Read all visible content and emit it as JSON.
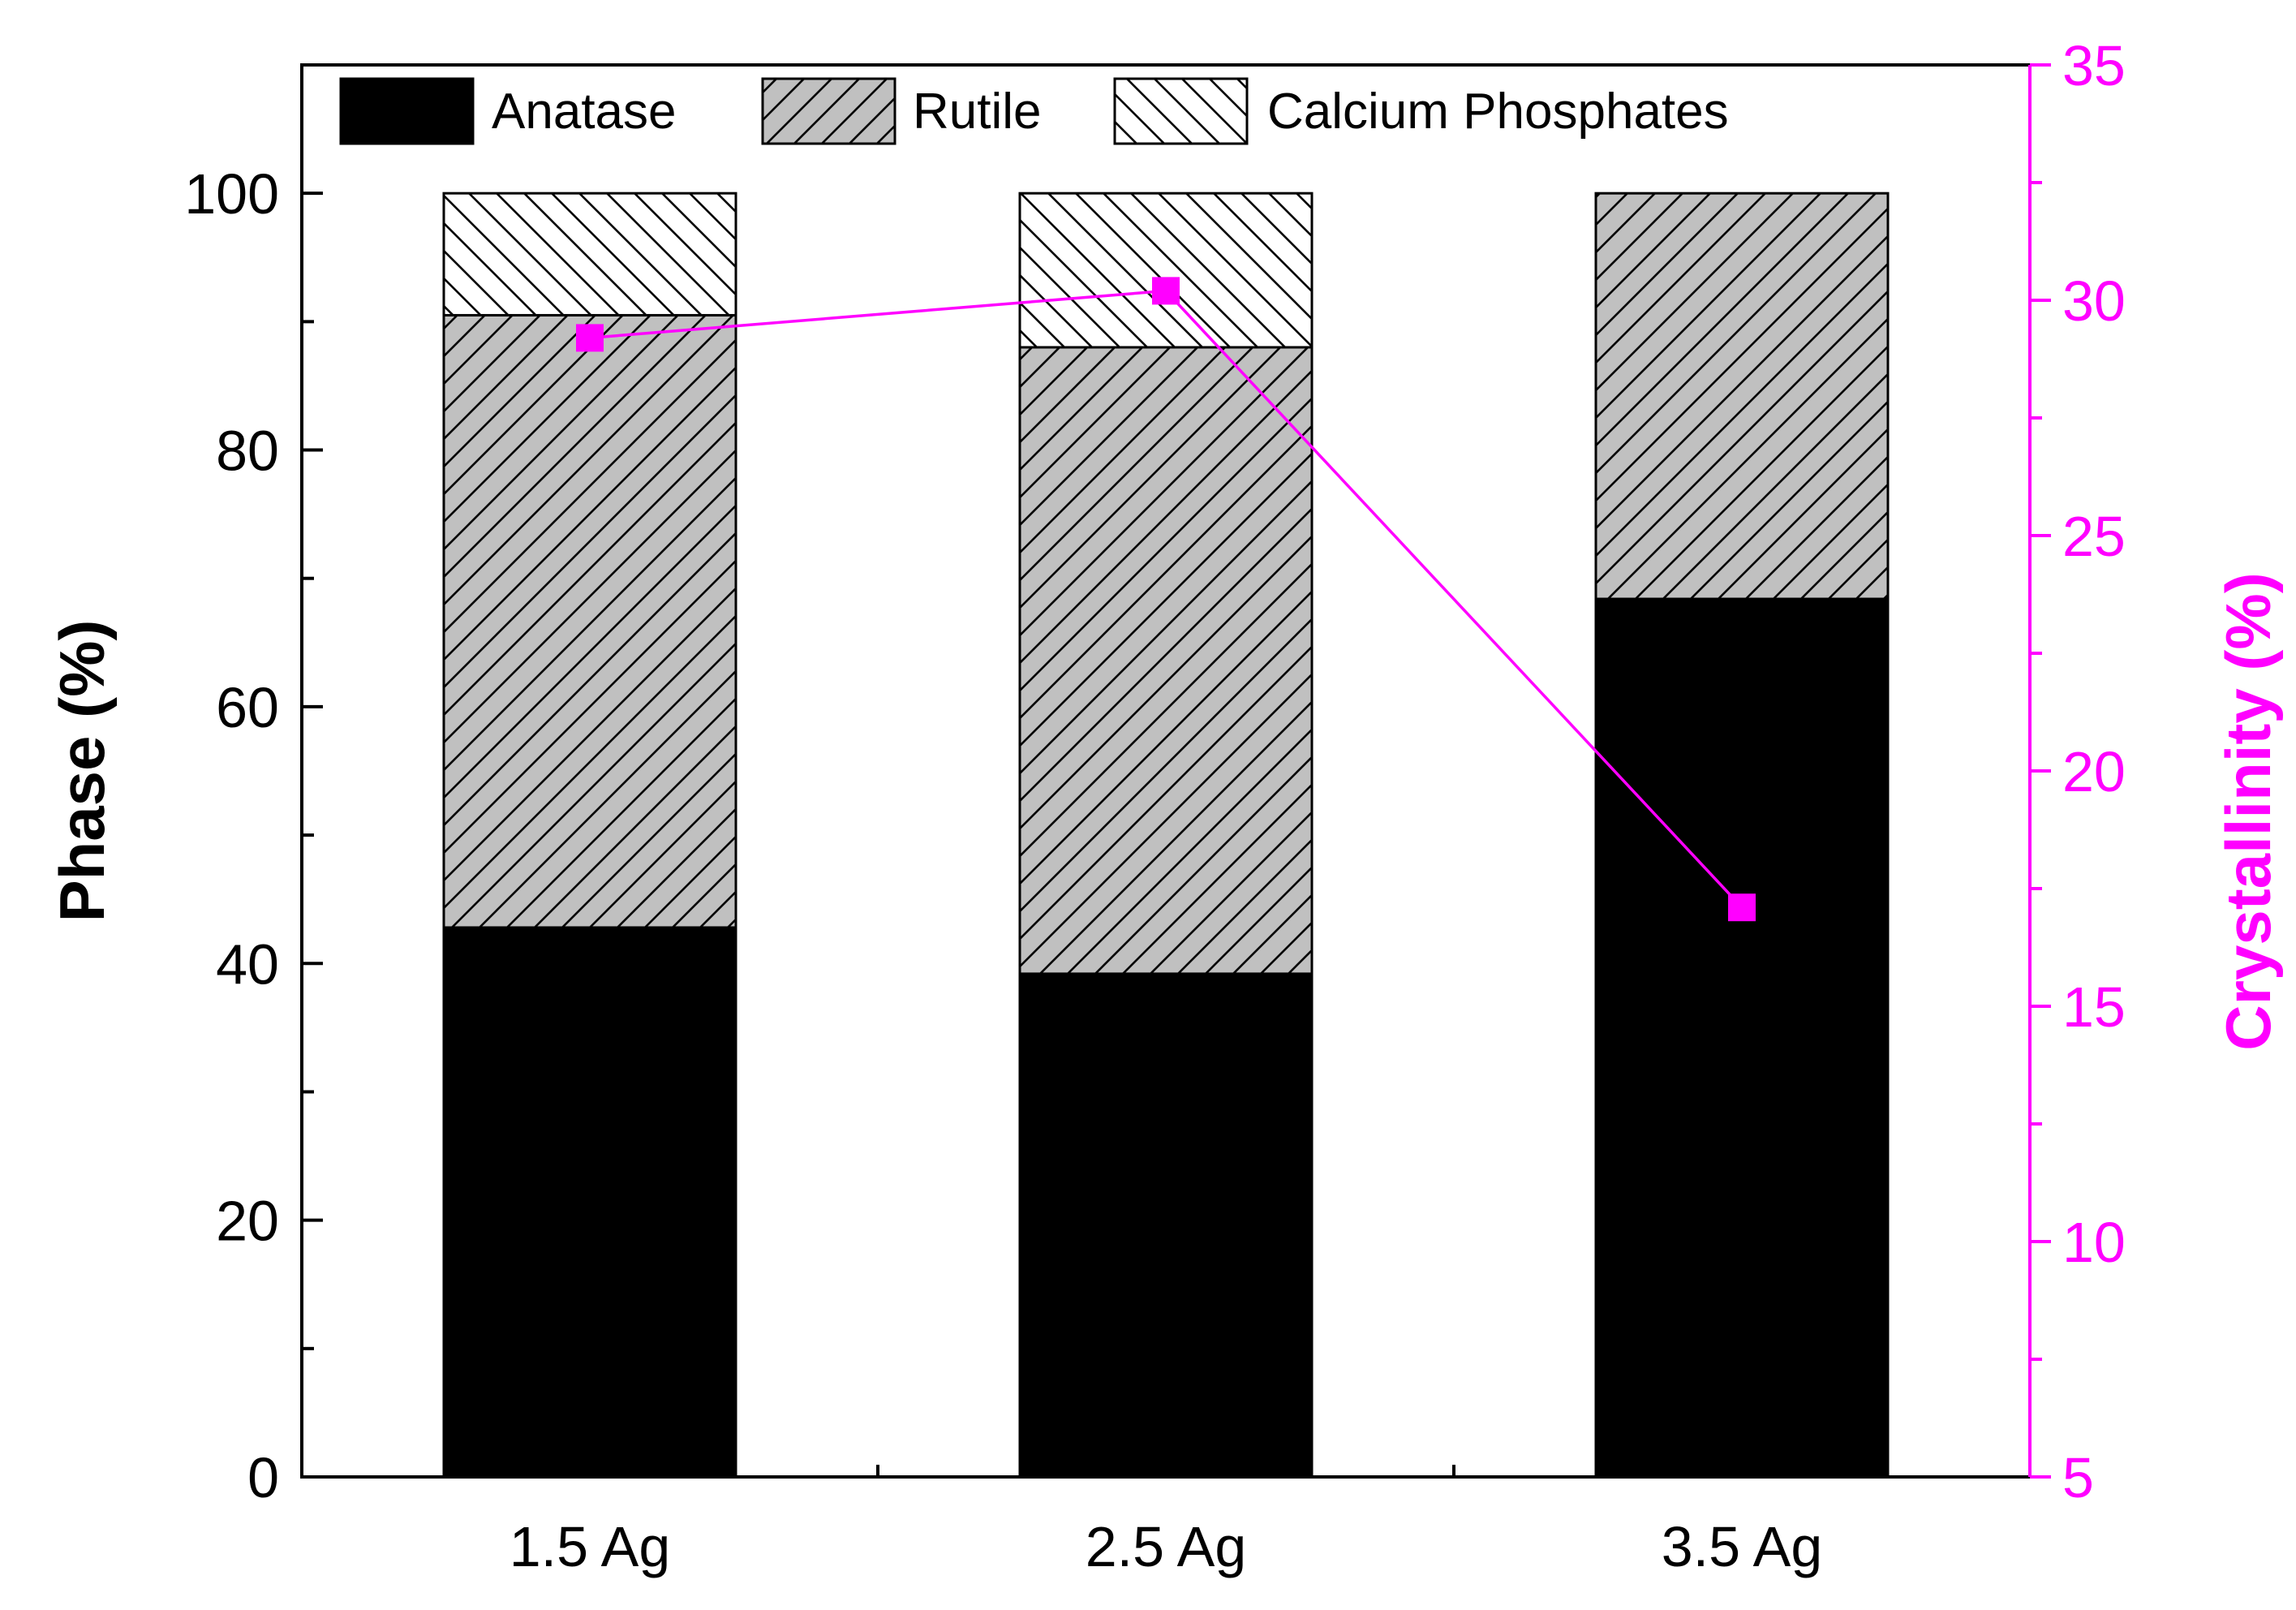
{
  "chart_data": {
    "type": "bar",
    "stacked": true,
    "categories": [
      "1.5 Ag",
      "2.5 Ag",
      "3.5 Ag"
    ],
    "series": [
      {
        "name": "Anatase",
        "values": [
          42.8,
          39.2,
          68.4
        ],
        "fill": "#000000",
        "pattern": "solid"
      },
      {
        "name": "Rutile",
        "values": [
          47.7,
          48.8,
          31.6
        ],
        "fill": "#c0c0c0",
        "pattern": "forward-hatch"
      },
      {
        "name": "Calcium Phosphates",
        "values": [
          9.5,
          12.0,
          0.0
        ],
        "fill": "#ffffff",
        "pattern": "back-hatch"
      }
    ],
    "line_series": {
      "name": "Crystallinity",
      "axis": "right",
      "values": [
        29.2,
        30.2,
        17.1
      ],
      "color": "#ff00ff",
      "marker": "square"
    },
    "xlabel": "",
    "ylabel": "Phase (%)",
    "ylim": [
      0,
      110
    ],
    "yticks": [
      0,
      20,
      40,
      60,
      80,
      100
    ],
    "y2label": "Crystallinity (%)",
    "y2lim": [
      5,
      35
    ],
    "y2ticks": [
      5,
      10,
      15,
      20,
      25,
      30,
      35
    ],
    "y2_color": "#ff00ff",
    "legend_position": "top",
    "grid": false
  }
}
